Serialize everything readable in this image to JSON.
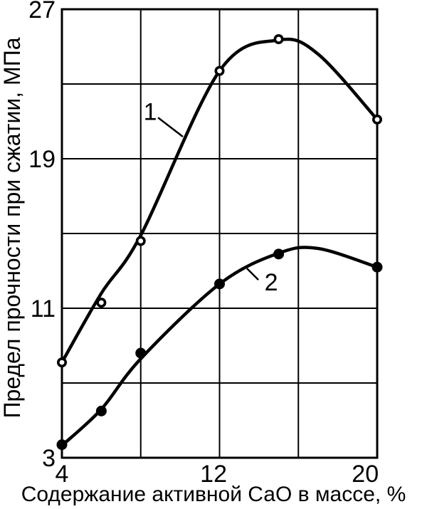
{
  "page": {
    "background": "#ffffff"
  },
  "chart_data": {
    "type": "line",
    "title": "",
    "xlabel": "Содержание активной СаО в массе, %",
    "ylabel": "Предел прочности при сжатии, МПа",
    "xlim": [
      4,
      20
    ],
    "ylim": [
      3,
      27
    ],
    "x_ticks": [
      4,
      12,
      20
    ],
    "y_ticks": [
      3,
      11,
      19,
      27
    ],
    "x_gridlines": [
      8,
      12,
      16
    ],
    "y_gridlines": [
      7,
      11,
      15,
      19,
      23
    ],
    "grid": true,
    "legend_position": "inline-annotations",
    "axis_color": "#000000",
    "background_color": "#ffffff",
    "series": [
      {
        "name": "1",
        "marker": "open-circle",
        "color": "#000000",
        "points": {
          "x": [
            4,
            6,
            8,
            12,
            15,
            20
          ],
          "y": [
            8.1,
            11.3,
            14.6,
            23.7,
            25.4,
            21.1
          ]
        },
        "trend": {
          "x": [
            4,
            6,
            8,
            12,
            15,
            17,
            20
          ],
          "y": [
            8.1,
            11.8,
            14.9,
            23.7,
            25.35,
            24.6,
            21.1
          ]
        }
      },
      {
        "name": "2",
        "marker": "filled-circle",
        "color": "#000000",
        "points": {
          "x": [
            4,
            6,
            8,
            12,
            15,
            20
          ],
          "y": [
            3.7,
            5.5,
            8.6,
            12.3,
            13.9,
            13.2
          ]
        },
        "trend": {
          "x": [
            4,
            6,
            8,
            12,
            15,
            17,
            20
          ],
          "y": [
            3.65,
            5.6,
            8.3,
            12.3,
            13.95,
            14.2,
            13.2
          ]
        }
      }
    ],
    "annotations": [
      {
        "text": "1",
        "x": 8.48,
        "y": 21.5,
        "leader": {
          "x1": 8.88,
          "y1": 21.2,
          "x2": 10.14,
          "y2": 20.18
        }
      },
      {
        "text": "2",
        "x": 14.62,
        "y": 12.38,
        "leader": {
          "x1": 13.97,
          "y1": 12.52,
          "x2": 13.39,
          "y2": 13.13
        }
      }
    ]
  }
}
